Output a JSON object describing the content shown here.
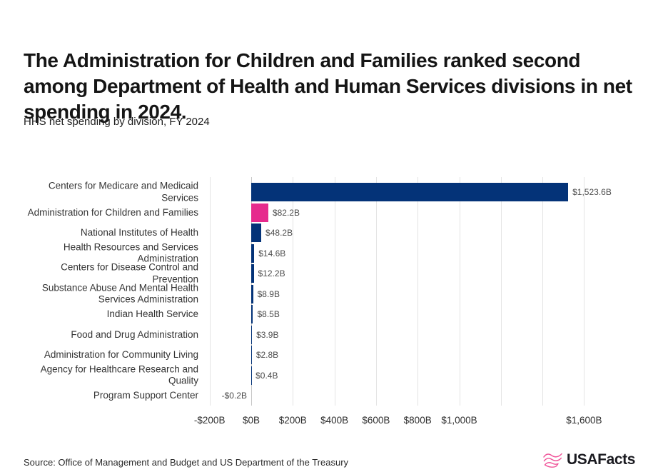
{
  "header": {
    "title": "The Administration for Children and Families ranked second among Department of Health and Human Services divisions in net spending in 2024.",
    "subtitle": "HHS net spending by division, FY 2024"
  },
  "chart_data": {
    "type": "bar",
    "orientation": "horizontal",
    "title": "HHS net spending by division, FY 2024",
    "categories": [
      "Centers for Medicare and Medicaid Services",
      "Administration for Children and Families",
      "National Institutes of Health",
      "Health Resources and Services Administration",
      "Centers for Disease Control and Prevention",
      "Substance Abuse And Mental Health Services Administration",
      "Indian Health Service",
      "Food and Drug Administration",
      "Administration for Community Living",
      "Agency for Healthcare Research and Quality",
      "Program Support Center"
    ],
    "values": [
      1523.6,
      82.2,
      48.2,
      14.6,
      12.2,
      8.9,
      8.5,
      3.9,
      2.8,
      0.4,
      -0.2
    ],
    "value_labels": [
      "$1,523.6B",
      "$82.2B",
      "$48.2B",
      "$14.6B",
      "$12.2B",
      "$8.9B",
      "$8.5B",
      "$3.9B",
      "$2.8B",
      "$0.4B",
      "-$0.2B"
    ],
    "unit": "billions of US dollars",
    "highlight_index": 1,
    "bar_color": "#043378",
    "highlight_color": "#E62A8D",
    "xlim": [
      -200,
      1800
    ],
    "grid_values": [
      -200,
      0,
      200,
      400,
      600,
      800,
      1000,
      1200,
      1400,
      1600
    ],
    "x_ticks": [
      {
        "value": -200,
        "label": "-$200B"
      },
      {
        "value": 0,
        "label": "$0B"
      },
      {
        "value": 200,
        "label": "$200B"
      },
      {
        "value": 400,
        "label": "$400B"
      },
      {
        "value": 600,
        "label": "$600B"
      },
      {
        "value": 800,
        "label": "$800B"
      },
      {
        "value": 1000,
        "label": "$1,000B"
      },
      {
        "value": 1600,
        "label": "$1,600B"
      }
    ],
    "grid": "vertical gridlines every $200B, legend none"
  },
  "footer": {
    "source": "Source: Office of Management and Budget and US Department of the Treasury",
    "logo_text": "USAFacts"
  }
}
